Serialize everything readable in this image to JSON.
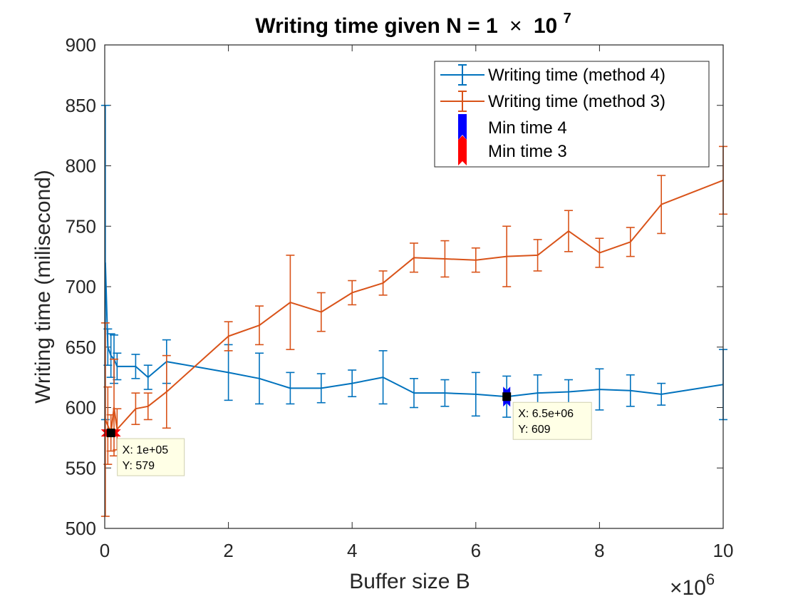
{
  "chart_data": {
    "type": "line",
    "title_main": "Writing time given N = 1",
    "title_times": "×",
    "title_base": "10",
    "title_exp": "7",
    "xlabel": "Buffer size B",
    "ylabel": "Writing time (milisecond)",
    "xlim": [
      0,
      10000000
    ],
    "ylim": [
      500,
      900
    ],
    "xticks": [
      0,
      2000000,
      4000000,
      6000000,
      8000000,
      10000000
    ],
    "xtick_labels": [
      "0",
      "2",
      "4",
      "6",
      "8",
      "10"
    ],
    "yticks": [
      500,
      550,
      600,
      650,
      700,
      750,
      800,
      850,
      900
    ],
    "ytick_labels": [
      "500",
      "550",
      "600",
      "650",
      "700",
      "750",
      "800",
      "850",
      "900"
    ],
    "x_exponent_times": "×",
    "x_exponent_base": "10",
    "x_exponent_power": "6",
    "grid": false,
    "legend_position": "top-right",
    "series": [
      {
        "name": "Writing time (method 4)",
        "color": "#0072BD",
        "x": [
          10000,
          50000,
          100000,
          150000,
          200000,
          500000,
          700000,
          1000000,
          2000000,
          2500000,
          3000000,
          3500000,
          4000000,
          4500000,
          5000000,
          5500000,
          6000000,
          6500000,
          7000000,
          7500000,
          8000000,
          8500000,
          9000000,
          10000000
        ],
        "y": [
          720,
          650,
          643,
          640,
          634,
          634,
          625,
          638,
          629,
          624,
          616,
          616,
          620,
          625,
          612,
          612,
          611,
          609,
          612,
          613,
          615,
          614,
          611,
          619
        ],
        "err": [
          130,
          15,
          18,
          20,
          11,
          10,
          10,
          18,
          23,
          21,
          13,
          12,
          11,
          22,
          12,
          11,
          18,
          17,
          15,
          10,
          17,
          13,
          9,
          29
        ]
      },
      {
        "name": "Writing time (method 3)",
        "color": "#D95319",
        "x": [
          10000,
          50000,
          100000,
          150000,
          200000,
          500000,
          700000,
          1000000,
          2000000,
          2500000,
          3000000,
          3500000,
          4000000,
          4500000,
          5000000,
          5500000,
          6000000,
          6500000,
          7000000,
          7500000,
          8000000,
          8500000,
          9000000,
          10000000
        ],
        "y": [
          590,
          585,
          579,
          600,
          582,
          599,
          601,
          613,
          659,
          668,
          687,
          679,
          695,
          703,
          724,
          723,
          722,
          725,
          726,
          746,
          728,
          737,
          768,
          788
        ],
        "err": [
          80,
          32,
          15,
          40,
          17,
          13,
          11,
          30,
          12,
          16,
          39,
          16,
          10,
          10,
          12,
          15,
          10,
          25,
          13,
          17,
          12,
          12,
          24,
          28
        ]
      }
    ],
    "markers": [
      {
        "name": "Min time 4",
        "color": "#0000FF",
        "x": 6500000,
        "y": 609
      },
      {
        "name": "Min time 3",
        "color": "#FF0000",
        "x": 100000,
        "y": 579
      }
    ],
    "datatips": [
      {
        "x_text": "X: 6.5e+06",
        "y_text": "Y: 609",
        "x": 6500000,
        "y": 609
      },
      {
        "x_text": "X: 1e+05",
        "y_text": "Y: 579",
        "x": 100000,
        "y": 579
      }
    ]
  }
}
